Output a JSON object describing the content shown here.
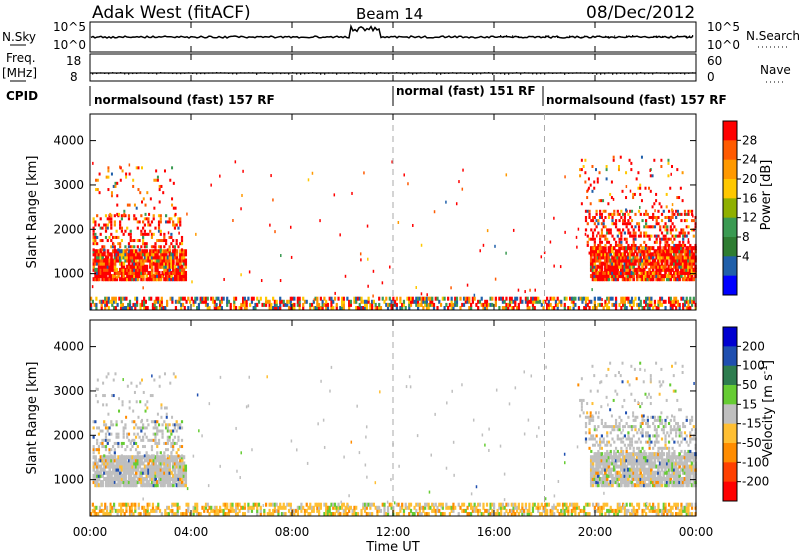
{
  "header": {
    "station": "Adak West (fitACF)",
    "beam": "Beam 14",
    "date": "08/Dec/2012"
  },
  "nsky_panel": {
    "left_label": "N.Sky",
    "left_ticks": [
      "10^5",
      "10^0"
    ],
    "right_ticks": [
      "10^5",
      "10^0"
    ],
    "right_label": "N.Search"
  },
  "freq_panel": {
    "left_label_1": "Freq.",
    "left_label_2": "[MHz]",
    "left_ticks": [
      "18",
      "8"
    ],
    "right_ticks": [
      "60",
      "0"
    ],
    "right_label": "Nave"
  },
  "cpid": {
    "label": "CPID",
    "segments": [
      {
        "text": "normalsound (fast) 157 RF",
        "start_hour": 0
      },
      {
        "text": "normal (fast) 151 RF",
        "start_hour": 12
      },
      {
        "text": "normalsound (fast) 157 RF",
        "start_hour": 18
      }
    ]
  },
  "chart_data": [
    {
      "type": "heatmap",
      "ylabel": "Slant Range [km]",
      "yticks": [
        "1000",
        "2000",
        "3000",
        "4000"
      ],
      "ylim": [
        180,
        4600
      ],
      "xlabel": "",
      "xlim": [
        0,
        24
      ],
      "colorbar": {
        "label": "Power [dB]",
        "ticks": [
          "28",
          "24",
          "20",
          "16",
          "12",
          "8",
          "4"
        ],
        "colors": [
          "#ff0000",
          "#ff5a00",
          "#ff9900",
          "#ffc800",
          "#8fb000",
          "#3a9a52",
          "#2e7d32",
          "#1f5faa",
          "#0000ff"
        ]
      }
    },
    {
      "type": "heatmap",
      "ylabel": "Slant Range [km]",
      "yticks": [
        "1000",
        "2000",
        "3000",
        "4000"
      ],
      "ylim": [
        180,
        4600
      ],
      "xlabel": "Time UT",
      "xticks": [
        "00:00",
        "04:00",
        "08:00",
        "12:00",
        "16:00",
        "20:00",
        "00:00"
      ],
      "xlim": [
        0,
        24
      ],
      "colorbar": {
        "label": "Velocity [m s^-1]",
        "ticks": [
          "200",
          "100",
          "50",
          "15",
          "-15",
          "-50",
          "-100",
          "-200"
        ],
        "colors": [
          "#0000d0",
          "#1f4fb0",
          "#2e7d4f",
          "#66cc33",
          "#bfbfbf",
          "#ffbf33",
          "#ff8c00",
          "#ff4000",
          "#ff0000"
        ]
      }
    }
  ]
}
